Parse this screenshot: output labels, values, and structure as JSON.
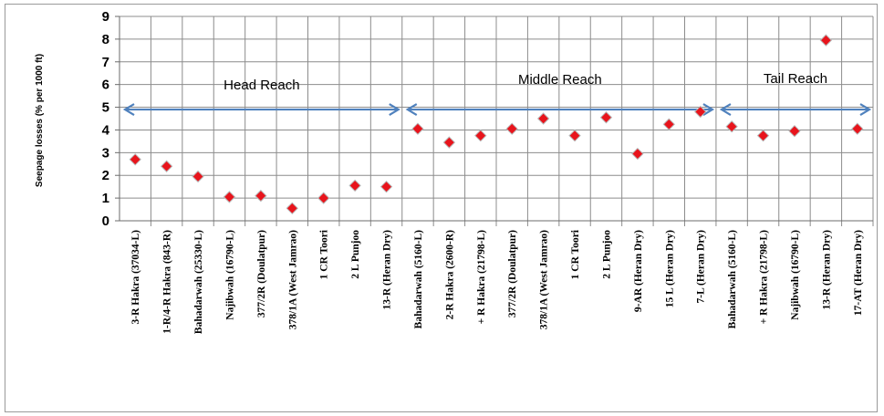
{
  "chart_data": {
    "type": "scatter",
    "ylabel": "Seepage losses (% per 1000 ft)",
    "ylim": [
      0,
      9
    ],
    "yticks": [
      0,
      1,
      2,
      3,
      4,
      5,
      6,
      7,
      8,
      9
    ],
    "grid": true,
    "marker_color": "#e8141c",
    "arrow_color": "#4f81bd",
    "categories": [
      "3-R Hakra (37034-L)",
      "1-R/4-R Hakra (843-R)",
      "Bahadarwah (25330-L)",
      "Najibwah (16790-L)",
      "377/2R (Doulatpur)",
      "378/1A (West Jamrao)",
      "1 CR Toori",
      "2 L Punjoo",
      "13-R (Heran Dry)",
      "Bahadarwah (5160-L)",
      "2-R Hakra (2600-R)",
      "+ R Hakra (21798-L)",
      "377/2R (Doulatpur)",
      "378/1A (West Jamrao)",
      "1 CR Toori",
      "2 L Punjoo",
      "9-AR (Heran Dry)",
      "15 L (Heran Dry)",
      "7-L (Heran Dry)",
      "Bahadarwah (5160-L)",
      "+ R Hakra (21798-L)",
      "Najibwah (16790-L)",
      "13-R (Heran Dry)",
      "17-AT (Heran Dry)"
    ],
    "values": [
      2.7,
      2.4,
      1.95,
      1.05,
      1.1,
      0.55,
      1.0,
      1.55,
      1.5,
      4.05,
      3.45,
      3.75,
      4.05,
      4.5,
      3.75,
      4.55,
      2.95,
      4.25,
      4.8,
      4.15,
      3.75,
      3.95,
      7.95,
      4.05
    ],
    "annotations": [
      {
        "text": "Head Reach",
        "from_index": 0,
        "to_index": 8,
        "y": 4.9
      },
      {
        "text": "Middle Reach",
        "from_index": 9,
        "to_index": 18,
        "y": 4.9
      },
      {
        "text": "Tail Reach",
        "from_index": 19,
        "to_index": 23,
        "y": 4.9
      }
    ]
  }
}
